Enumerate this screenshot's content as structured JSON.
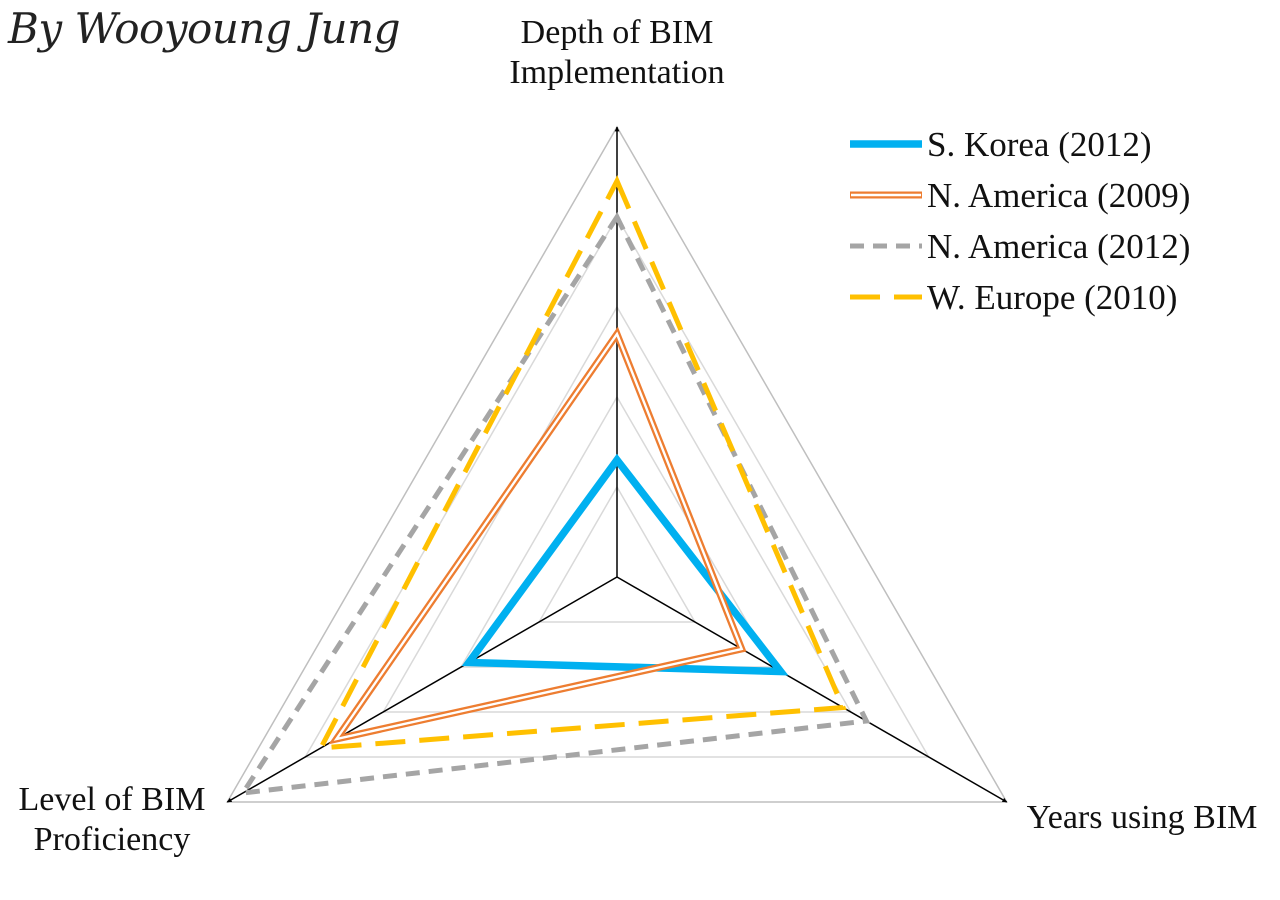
{
  "author": "By Wooyoung Jung",
  "chart_data": {
    "type": "radar",
    "axes": [
      {
        "lines": [
          "Depth of BIM",
          "Implementation"
        ]
      },
      {
        "lines": [
          "Years using BIM"
        ]
      },
      {
        "lines": [
          "Level of BIM",
          "Proficiency"
        ]
      }
    ],
    "grid_levels": 5,
    "range": [
      0,
      5
    ],
    "legend_position": "top-right",
    "series": [
      {
        "name": "S. Korea (2012)",
        "values": [
          1.3,
          2.1,
          1.9
        ],
        "color": "#00B0F0",
        "style": "solid-thick"
      },
      {
        "name": "N. America (2009)",
        "values": [
          2.7,
          1.6,
          3.6
        ],
        "color": "#ED7D31",
        "style": "double"
      },
      {
        "name": "N. America (2012)",
        "values": [
          4.0,
          3.2,
          4.8
        ],
        "color": "#A5A5A5",
        "style": "dashed"
      },
      {
        "name": "W. Europe (2010)",
        "values": [
          4.4,
          2.9,
          3.8
        ],
        "color": "#FFC000",
        "style": "long-dash"
      }
    ]
  }
}
